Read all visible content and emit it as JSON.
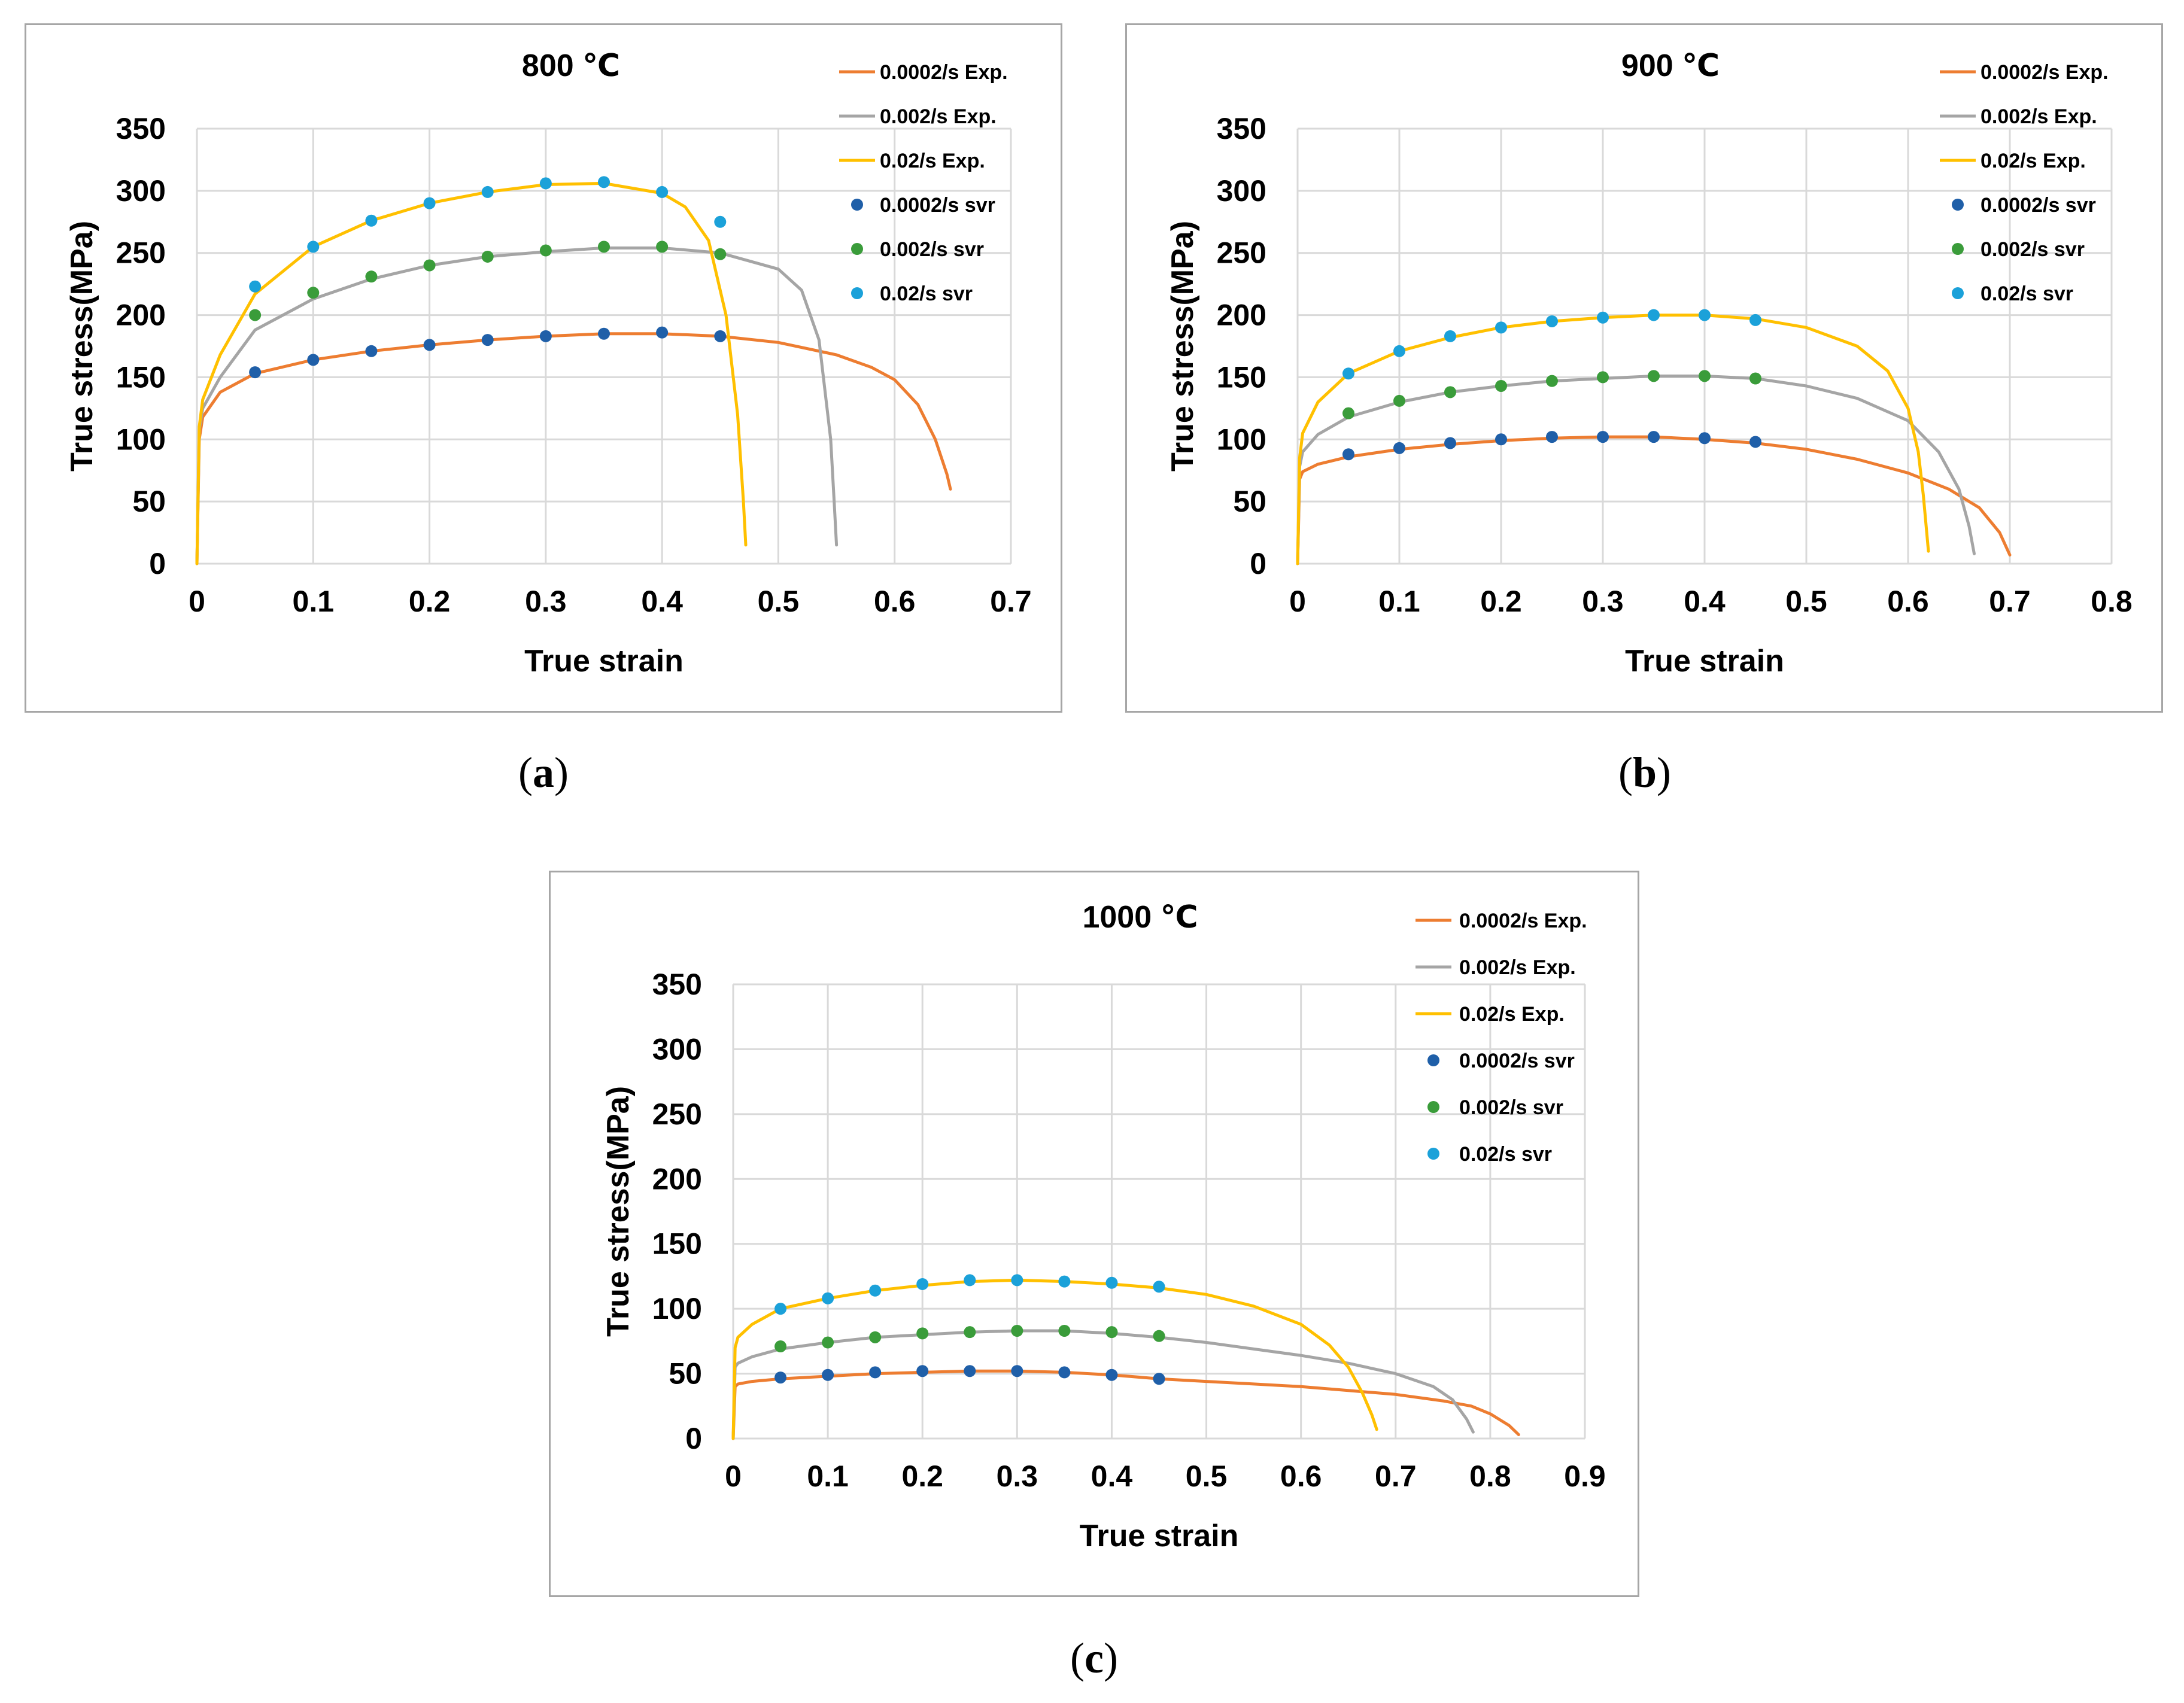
{
  "figure": {
    "captions": {
      "a": {
        "open": "(",
        "letter": "a",
        "close": ")"
      },
      "b": {
        "open": "(",
        "letter": "b",
        "close": ")"
      },
      "c": {
        "open": "(",
        "letter": "c",
        "close": ")"
      }
    }
  },
  "chart_data": [
    {
      "type": "line",
      "id": "a",
      "title": "800 ℃",
      "xlabel": "True strain",
      "ylabel": "True stress(MPa)",
      "xlim": [
        0,
        0.7
      ],
      "ylim": [
        0,
        350
      ],
      "xticks": [
        0,
        0.1,
        0.2,
        0.3,
        0.4,
        0.5,
        0.6,
        0.7
      ],
      "yticks": [
        0,
        50,
        100,
        150,
        200,
        250,
        300,
        350
      ],
      "grid": true,
      "legend_position": "top-right",
      "series": [
        {
          "name": "0.0002/s Exp.",
          "kind": "line",
          "color": "#ed7d31",
          "x": [
            0,
            0.002,
            0.005,
            0.02,
            0.05,
            0.1,
            0.15,
            0.2,
            0.25,
            0.3,
            0.35,
            0.4,
            0.45,
            0.5,
            0.55,
            0.58,
            0.6,
            0.62,
            0.635,
            0.645,
            0.648
          ],
          "y": [
            0,
            100,
            118,
            138,
            153,
            164,
            171,
            176,
            180,
            183,
            185,
            185,
            183,
            178,
            168,
            158,
            148,
            128,
            100,
            72,
            60
          ]
        },
        {
          "name": "0.002/s Exp.",
          "kind": "line",
          "color": "#a5a5a5",
          "x": [
            0,
            0.002,
            0.005,
            0.02,
            0.05,
            0.1,
            0.15,
            0.2,
            0.25,
            0.3,
            0.35,
            0.4,
            0.45,
            0.5,
            0.52,
            0.535,
            0.545,
            0.548,
            0.55
          ],
          "y": [
            0,
            108,
            125,
            150,
            188,
            213,
            229,
            240,
            247,
            251,
            254,
            254,
            250,
            237,
            220,
            180,
            100,
            50,
            15
          ]
        },
        {
          "name": "0.02/s Exp.",
          "kind": "line",
          "color": "#ffc000",
          "x": [
            0,
            0.002,
            0.005,
            0.02,
            0.05,
            0.1,
            0.15,
            0.2,
            0.25,
            0.3,
            0.35,
            0.4,
            0.42,
            0.44,
            0.455,
            0.465,
            0.47,
            0.472
          ],
          "y": [
            0,
            110,
            132,
            168,
            217,
            255,
            276,
            290,
            299,
            305,
            306,
            298,
            287,
            260,
            200,
            120,
            50,
            15
          ]
        },
        {
          "name": "0.0002/s svr",
          "kind": "scatter",
          "color": "#1f5fa8",
          "x": [
            0.05,
            0.1,
            0.15,
            0.2,
            0.25,
            0.3,
            0.35,
            0.4,
            0.45
          ],
          "y": [
            154,
            164,
            171,
            176,
            180,
            183,
            185,
            186,
            183
          ]
        },
        {
          "name": "0.002/s svr",
          "kind": "scatter",
          "color": "#3a9c3a",
          "x": [
            0.05,
            0.1,
            0.15,
            0.2,
            0.25,
            0.3,
            0.35,
            0.4,
            0.45
          ],
          "y": [
            200,
            218,
            231,
            240,
            247,
            252,
            255,
            255,
            249
          ]
        },
        {
          "name": "0.02/s svr",
          "kind": "scatter",
          "color": "#1ba1d9",
          "x": [
            0.05,
            0.1,
            0.15,
            0.2,
            0.25,
            0.3,
            0.35,
            0.4,
            0.45
          ],
          "y": [
            223,
            255,
            276,
            290,
            299,
            306,
            307,
            299,
            275
          ]
        }
      ]
    },
    {
      "type": "line",
      "id": "b",
      "title": "900 ℃",
      "xlabel": "True strain",
      "ylabel": "True stress(MPa)",
      "xlim": [
        0,
        0.8
      ],
      "ylim": [
        0,
        350
      ],
      "xticks": [
        0,
        0.1,
        0.2,
        0.3,
        0.4,
        0.5,
        0.6,
        0.7,
        0.8
      ],
      "yticks": [
        0,
        50,
        100,
        150,
        200,
        250,
        300,
        350
      ],
      "grid": true,
      "legend_position": "top-right",
      "series": [
        {
          "name": "0.0002/s Exp.",
          "kind": "line",
          "color": "#ed7d31",
          "x": [
            0,
            0.002,
            0.005,
            0.02,
            0.05,
            0.1,
            0.15,
            0.2,
            0.25,
            0.3,
            0.35,
            0.4,
            0.45,
            0.5,
            0.55,
            0.6,
            0.64,
            0.67,
            0.69,
            0.7
          ],
          "y": [
            0,
            68,
            74,
            80,
            86,
            92,
            96,
            99,
            101,
            102,
            102,
            100,
            97,
            92,
            84,
            73,
            60,
            45,
            25,
            7
          ]
        },
        {
          "name": "0.002/s Exp.",
          "kind": "line",
          "color": "#a5a5a5",
          "x": [
            0,
            0.002,
            0.005,
            0.02,
            0.05,
            0.1,
            0.15,
            0.2,
            0.25,
            0.3,
            0.35,
            0.4,
            0.45,
            0.5,
            0.55,
            0.6,
            0.63,
            0.65,
            0.66,
            0.665
          ],
          "y": [
            0,
            78,
            90,
            104,
            118,
            130,
            138,
            143,
            147,
            149,
            151,
            151,
            149,
            143,
            133,
            115,
            90,
            60,
            30,
            8
          ]
        },
        {
          "name": "0.02/s Exp.",
          "kind": "line",
          "color": "#ffc000",
          "x": [
            0,
            0.002,
            0.005,
            0.02,
            0.05,
            0.1,
            0.15,
            0.2,
            0.25,
            0.3,
            0.35,
            0.4,
            0.45,
            0.5,
            0.55,
            0.58,
            0.6,
            0.61,
            0.615,
            0.62
          ],
          "y": [
            0,
            85,
            105,
            130,
            153,
            171,
            182,
            190,
            195,
            198,
            200,
            200,
            197,
            190,
            175,
            155,
            125,
            90,
            55,
            10
          ]
        },
        {
          "name": "0.0002/s svr",
          "kind": "scatter",
          "color": "#1f5fa8",
          "x": [
            0.05,
            0.1,
            0.15,
            0.2,
            0.25,
            0.3,
            0.35,
            0.4,
            0.45
          ],
          "y": [
            88,
            93,
            97,
            100,
            102,
            102,
            102,
            101,
            98
          ]
        },
        {
          "name": "0.002/s svr",
          "kind": "scatter",
          "color": "#3a9c3a",
          "x": [
            0.05,
            0.1,
            0.15,
            0.2,
            0.25,
            0.3,
            0.35,
            0.4,
            0.45
          ],
          "y": [
            121,
            131,
            138,
            143,
            147,
            150,
            151,
            151,
            149
          ]
        },
        {
          "name": "0.02/s svr",
          "kind": "scatter",
          "color": "#1ba1d9",
          "x": [
            0.05,
            0.1,
            0.15,
            0.2,
            0.25,
            0.3,
            0.35,
            0.4,
            0.45
          ],
          "y": [
            153,
            171,
            183,
            190,
            195,
            198,
            200,
            200,
            196
          ]
        }
      ]
    },
    {
      "type": "line",
      "id": "c",
      "title": "1000 ℃",
      "xlabel": "True strain",
      "ylabel": "True stress(MPa)",
      "xlim": [
        0,
        0.9
      ],
      "ylim": [
        0,
        350
      ],
      "xticks": [
        0,
        0.1,
        0.2,
        0.3,
        0.4,
        0.5,
        0.6,
        0.7,
        0.8,
        0.9
      ],
      "yticks": [
        0,
        50,
        100,
        150,
        200,
        250,
        300,
        350
      ],
      "grid": true,
      "legend_position": "top-right",
      "series": [
        {
          "name": "0.0002/s Exp.",
          "kind": "line",
          "color": "#ed7d31",
          "x": [
            0,
            0.002,
            0.005,
            0.02,
            0.05,
            0.1,
            0.15,
            0.2,
            0.25,
            0.3,
            0.35,
            0.4,
            0.45,
            0.5,
            0.55,
            0.6,
            0.65,
            0.7,
            0.75,
            0.78,
            0.8,
            0.82,
            0.83
          ],
          "y": [
            0,
            40,
            42,
            44,
            46,
            48,
            50,
            51,
            52,
            52,
            51,
            49,
            46,
            44,
            42,
            40,
            37,
            34,
            29,
            25,
            19,
            10,
            3
          ]
        },
        {
          "name": "0.002/s Exp.",
          "kind": "line",
          "color": "#a5a5a5",
          "x": [
            0,
            0.002,
            0.005,
            0.02,
            0.05,
            0.1,
            0.15,
            0.2,
            0.25,
            0.3,
            0.35,
            0.4,
            0.45,
            0.5,
            0.55,
            0.6,
            0.65,
            0.7,
            0.74,
            0.76,
            0.775,
            0.782
          ],
          "y": [
            0,
            55,
            58,
            63,
            69,
            74,
            78,
            80,
            82,
            83,
            83,
            81,
            78,
            74,
            69,
            64,
            58,
            50,
            40,
            30,
            15,
            5
          ]
        },
        {
          "name": "0.02/s Exp.",
          "kind": "line",
          "color": "#ffc000",
          "x": [
            0,
            0.002,
            0.005,
            0.02,
            0.05,
            0.1,
            0.15,
            0.2,
            0.25,
            0.3,
            0.35,
            0.4,
            0.45,
            0.5,
            0.55,
            0.6,
            0.63,
            0.65,
            0.665,
            0.675,
            0.68
          ],
          "y": [
            0,
            70,
            78,
            88,
            100,
            108,
            114,
            118,
            121,
            122,
            121,
            119,
            116,
            111,
            102,
            88,
            72,
            55,
            35,
            18,
            7
          ]
        },
        {
          "name": "0.0002/s svr",
          "kind": "scatter",
          "color": "#1f5fa8",
          "x": [
            0.05,
            0.1,
            0.15,
            0.2,
            0.25,
            0.3,
            0.35,
            0.4,
            0.45
          ],
          "y": [
            47,
            49,
            51,
            52,
            52,
            52,
            51,
            49,
            46
          ]
        },
        {
          "name": "0.002/s svr",
          "kind": "scatter",
          "color": "#3a9c3a",
          "x": [
            0.05,
            0.1,
            0.15,
            0.2,
            0.25,
            0.3,
            0.35,
            0.4,
            0.45
          ],
          "y": [
            71,
            74,
            78,
            81,
            82,
            83,
            83,
            82,
            79
          ]
        },
        {
          "name": "0.02/s svr",
          "kind": "scatter",
          "color": "#1ba1d9",
          "x": [
            0.05,
            0.1,
            0.15,
            0.2,
            0.25,
            0.3,
            0.35,
            0.4,
            0.45
          ],
          "y": [
            100,
            108,
            114,
            119,
            122,
            122,
            121,
            120,
            117
          ]
        }
      ]
    }
  ]
}
